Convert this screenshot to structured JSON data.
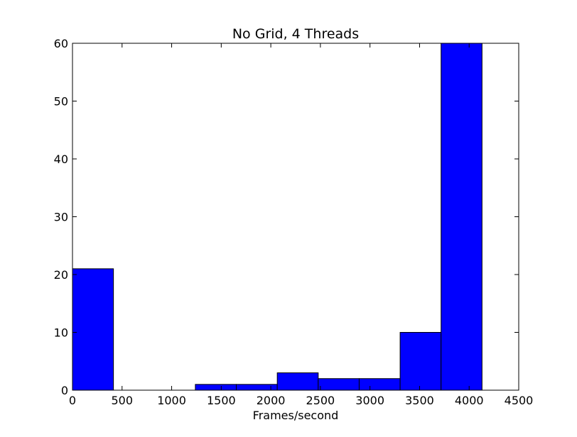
{
  "chart_data": {
    "type": "bar",
    "title": "No Grid, 4 Threads",
    "xlabel": "Frames/second",
    "ylabel": "",
    "xlim": [
      0,
      4500
    ],
    "ylim": [
      0,
      60
    ],
    "xticks": [
      0,
      500,
      1000,
      1500,
      2000,
      2500,
      3000,
      3500,
      4000,
      4500
    ],
    "yticks": [
      0,
      10,
      20,
      30,
      40,
      50,
      60
    ],
    "xtick_labels": [
      "0",
      "500",
      "1000",
      "1500",
      "2000",
      "2500",
      "3000",
      "3500",
      "4000",
      "4500"
    ],
    "ytick_labels": [
      "0",
      "10",
      "20",
      "30",
      "40",
      "50",
      "60"
    ],
    "bins": [
      {
        "x0": 0,
        "x1": 413,
        "count": 21
      },
      {
        "x0": 413,
        "x1": 826,
        "count": 0
      },
      {
        "x0": 826,
        "x1": 1239,
        "count": 0
      },
      {
        "x0": 1239,
        "x1": 1652,
        "count": 1
      },
      {
        "x0": 1652,
        "x1": 2065,
        "count": 1
      },
      {
        "x0": 2065,
        "x1": 2478,
        "count": 3
      },
      {
        "x0": 2478,
        "x1": 2891,
        "count": 2
      },
      {
        "x0": 2891,
        "x1": 3304,
        "count": 2
      },
      {
        "x0": 3304,
        "x1": 3717,
        "count": 10
      },
      {
        "x0": 3717,
        "x1": 4130,
        "count": 60
      }
    ],
    "bar_color": "#0000ff",
    "edge_color": "#000000",
    "grid": false
  }
}
